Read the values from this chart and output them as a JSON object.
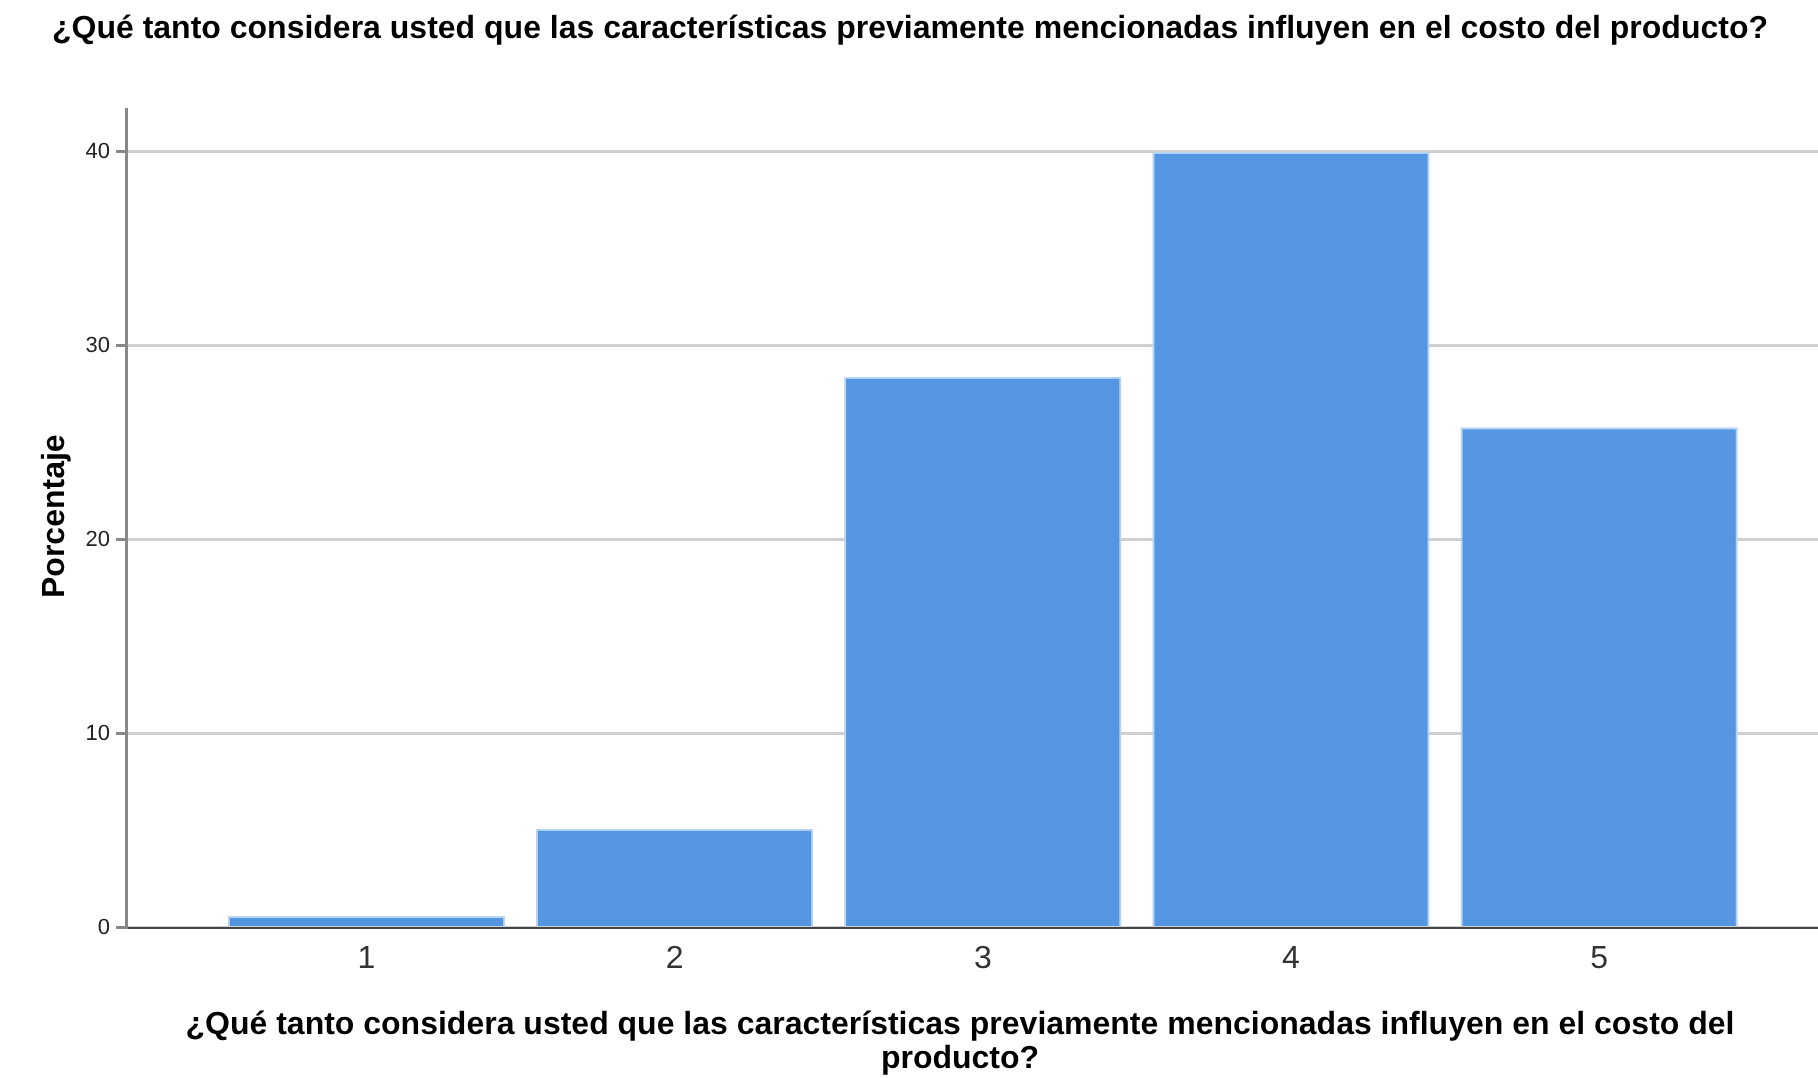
{
  "chart_data": {
    "type": "bar",
    "title": "¿Qué tanto considera usted que las características previamente mencionadas influyen en el costo del producto?",
    "xlabel": "¿Qué tanto considera usted que las características previamente mencionadas influyen en el costo del producto?",
    "ylabel": "Porcentaje",
    "categories": [
      "1",
      "2",
      "3",
      "4",
      "5"
    ],
    "values": [
      0.6,
      5.1,
      28.4,
      40.0,
      25.8
    ],
    "color": "#5596e3",
    "ylim": [
      0,
      42.2
    ],
    "yticks": [
      0,
      10,
      20,
      30,
      40
    ],
    "grid": "y"
  }
}
